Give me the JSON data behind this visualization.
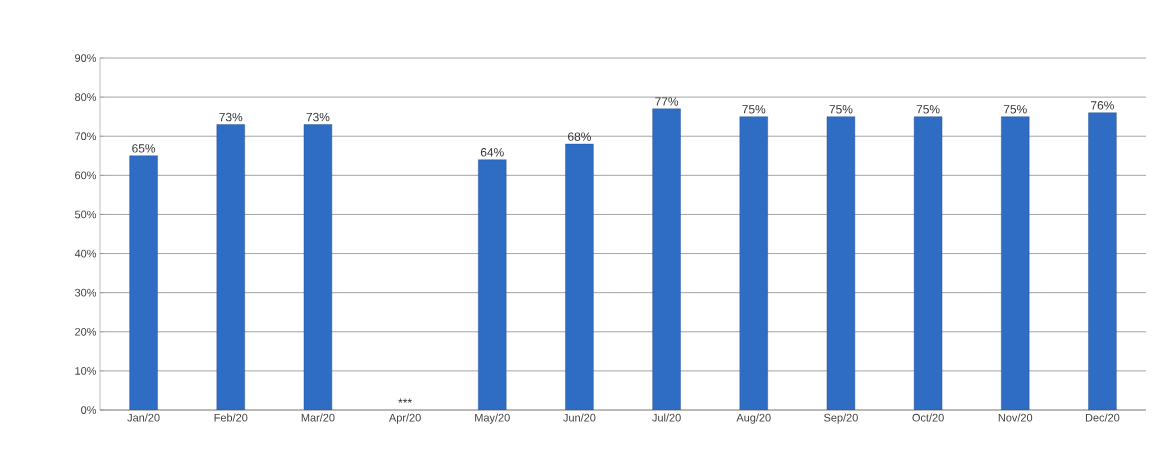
{
  "chart_data": {
    "type": "bar",
    "categories": [
      "Jan/20",
      "Feb/20",
      "Mar/20",
      "Apr/20",
      "May/20",
      "Jun/20",
      "Jul/20",
      "Aug/20",
      "Sep/20",
      "Oct/20",
      "Nov/20",
      "Dec/20"
    ],
    "values": [
      65,
      73,
      73,
      null,
      64,
      68,
      77,
      75,
      75,
      75,
      75,
      76
    ],
    "value_labels": [
      "65%",
      "73%",
      "73%",
      "***",
      "64%",
      "68%",
      "77%",
      "75%",
      "75%",
      "75%",
      "75%",
      "76%"
    ],
    "color": "#2f6cc4",
    "ylim": [
      0,
      90
    ],
    "yticks": [
      {
        "value": 0,
        "label": "0%"
      },
      {
        "value": 10,
        "label": "10%"
      },
      {
        "value": 20,
        "label": "20%"
      },
      {
        "value": 30,
        "label": "30%"
      },
      {
        "value": 40,
        "label": "40%"
      },
      {
        "value": 50,
        "label": "50%"
      },
      {
        "value": 60,
        "label": "60%"
      },
      {
        "value": 70,
        "label": "70%"
      },
      {
        "value": 80,
        "label": "80%"
      },
      {
        "value": 90,
        "label": "90%"
      }
    ],
    "grid": "y"
  }
}
